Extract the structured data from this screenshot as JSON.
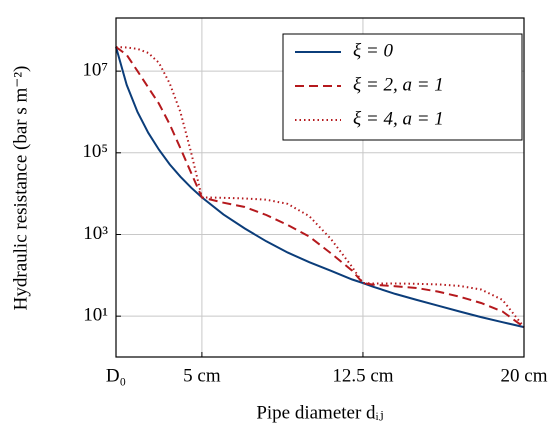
{
  "chart_data": {
    "type": "line",
    "xlabel": "Pipe diameter dᵢⱼ",
    "ylabel": "Hydraulic resistance (bar s m⁻²)",
    "x": [
      1,
      1.5,
      2,
      2.5,
      3,
      3.5,
      4,
      4.5,
      5,
      6,
      7,
      8,
      9,
      10,
      11,
      12,
      12.5,
      13,
      14,
      15,
      16,
      17,
      18,
      19,
      20
    ],
    "series": [
      {
        "name": "ξ = 0",
        "color": "#0b3d7a",
        "dash": "solid",
        "values": [
          39000000,
          4600000,
          1000000,
          310000,
          120000,
          52000,
          26000,
          14000,
          8100,
          3100,
          1400,
          680,
          360,
          210,
          130,
          79,
          65,
          52,
          35,
          25,
          18,
          13,
          9.5,
          7.1,
          5.4
        ]
      },
      {
        "name": "ξ = 2, a = 1",
        "color": "#b5191d",
        "dash": "dashed",
        "values": [
          39000000,
          25000000,
          10000000,
          4000000,
          1600000,
          500000,
          130000,
          32000,
          8100,
          6000,
          4700,
          3000,
          1700,
          890,
          350,
          130,
          65,
          59,
          54,
          49,
          40,
          30,
          21,
          13,
          5.4
        ]
      },
      {
        "name": "ξ = 4, a = 1",
        "color": "#b5191d",
        "dash": "dotted",
        "values": [
          39000000,
          38000000,
          35000000,
          28000000,
          16000000,
          5000000,
          1000000,
          100000,
          8100,
          7900,
          7600,
          7100,
          5600,
          2800,
          790,
          160,
          65,
          63,
          63,
          62,
          60,
          55,
          45,
          25,
          5.4
        ]
      }
    ],
    "xlim": [
      1,
      20
    ],
    "xticks": [
      {
        "value": 1,
        "label": "D₀"
      },
      {
        "value": 5,
        "label": "5 cm"
      },
      {
        "value": 12.5,
        "label": "12.5 cm"
      },
      {
        "value": 20,
        "label": "20 cm"
      }
    ],
    "ylim": [
      1,
      200000000
    ],
    "yticks": [
      {
        "value": 10,
        "label": "10¹"
      },
      {
        "value": 1000,
        "label": "10³"
      },
      {
        "value": 100000,
        "label": "10⁵"
      },
      {
        "value": 10000000,
        "label": "10⁷"
      }
    ],
    "ylog": true,
    "grid": true,
    "legend": "upper right"
  }
}
